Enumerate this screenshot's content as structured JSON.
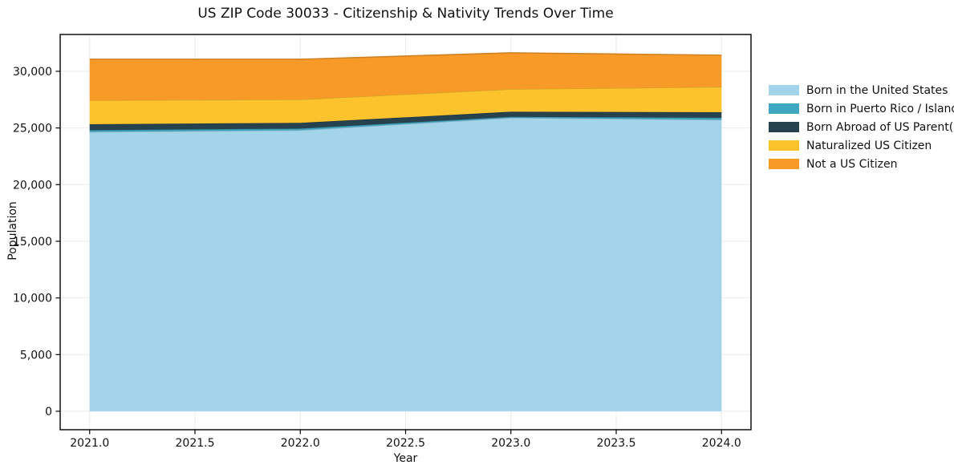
{
  "page": {
    "background": "#ffffff"
  },
  "chart_data": {
    "type": "area",
    "stacked": true,
    "title": "US ZIP Code 30033 - Citizenship & Nativity Trends Over Time",
    "xlabel": "Year",
    "ylabel": "Population",
    "x": [
      2021,
      2022,
      2023,
      2024
    ],
    "series": [
      {
        "name": "Born in the United States",
        "color": "#a3d4ea",
        "values": [
          24650,
          24800,
          25900,
          25720
        ]
      },
      {
        "name": "Born in Puerto Rico / Islands",
        "color": "#3ea7c1",
        "values": [
          150,
          150,
          80,
          180
        ]
      },
      {
        "name": "Born Abroad of US Parent(s)",
        "color": "#27424f",
        "values": [
          530,
          500,
          450,
          490
        ]
      },
      {
        "name": "Naturalized US Citizen",
        "color": "#fcc32d",
        "values": [
          2120,
          2070,
          2000,
          2240
        ]
      },
      {
        "name": "Not a US Citizen",
        "color": "#f89a28",
        "values": [
          3610,
          3540,
          3200,
          2790
        ]
      }
    ],
    "xticks": {
      "values": [
        2021.0,
        2021.5,
        2022.0,
        2022.5,
        2023.0,
        2023.5,
        2024.0
      ],
      "labels": [
        "2021.0",
        "2021.5",
        "2022.0",
        "2022.5",
        "2023.0",
        "2023.5",
        "2024.0"
      ]
    },
    "yticks": {
      "values": [
        0,
        5000,
        10000,
        15000,
        20000,
        25000,
        30000
      ],
      "labels": [
        "0",
        "5,000",
        "10,000",
        "15,000",
        "20,000",
        "25,000",
        "30,000"
      ]
    },
    "xlim": [
      2020.86,
      2024.14
    ],
    "ylim": [
      -1630,
      33250
    ],
    "grid": true,
    "grid_color": "#ebebeb",
    "frame_color": "#000000",
    "tick_color": "#000000",
    "legend_position": "right"
  }
}
